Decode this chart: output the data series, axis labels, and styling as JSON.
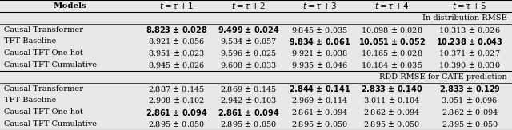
{
  "section1_label": "In distribution RMSE",
  "section2_label": "RDD RMSE for CATE prediction",
  "col_headers": [
    "$t = \\tau+1$",
    "$t = \\tau+2$",
    "$t = \\tau+3$",
    "$t = \\tau+4$",
    "$t = \\tau+5$"
  ],
  "rows_section1": [
    {
      "model": "Causal Transformer",
      "values": [
        "8.823",
        "9.499",
        "9.845",
        "10.098",
        "10.313"
      ],
      "errors": [
        "0.028",
        "0.024",
        "0.035",
        "0.028",
        "0.026"
      ],
      "bold_val": [
        true,
        true,
        false,
        false,
        false
      ],
      "bold_err": [
        true,
        true,
        false,
        false,
        false
      ]
    },
    {
      "model": "TFT Baseline",
      "values": [
        "8.921",
        "9.534",
        "9.834",
        "10.051",
        "10.238"
      ],
      "errors": [
        "0.056",
        "0.057",
        "0.061",
        "0.052",
        "0.043"
      ],
      "bold_val": [
        false,
        false,
        true,
        true,
        true
      ],
      "bold_err": [
        false,
        false,
        true,
        true,
        true
      ]
    },
    {
      "model": "Causal TFT One-hot",
      "values": [
        "8.951",
        "9.596",
        "9.921",
        "10.165",
        "10.371"
      ],
      "errors": [
        "0.023",
        "0.025",
        "0.038",
        "0.028",
        "0.027"
      ],
      "bold_val": [
        false,
        false,
        false,
        false,
        false
      ],
      "bold_err": [
        false,
        false,
        false,
        false,
        false
      ]
    },
    {
      "model": "Causal TFT Cumulative",
      "values": [
        "8.945",
        "9.608",
        "9.935",
        "10.184",
        "10.390"
      ],
      "errors": [
        "0.026",
        "0.033",
        "0.046",
        "0.035",
        "0.030"
      ],
      "bold_val": [
        false,
        false,
        false,
        false,
        false
      ],
      "bold_err": [
        false,
        false,
        false,
        false,
        false
      ]
    }
  ],
  "rows_section2": [
    {
      "model": "Causal Transformer",
      "values": [
        "2.887",
        "2.869",
        "2.844",
        "2.833",
        "2.833"
      ],
      "errors": [
        "0.145",
        "0.145",
        "0.141",
        "0.140",
        "0.129"
      ],
      "bold_val": [
        false,
        false,
        true,
        true,
        true
      ],
      "bold_err": [
        false,
        false,
        true,
        true,
        true
      ]
    },
    {
      "model": "TFT Baseline",
      "values": [
        "2.908",
        "2.942",
        "2.969",
        "3.011",
        "3.051"
      ],
      "errors": [
        "0.102",
        "0.103",
        "0.114",
        "0.104",
        "0.096"
      ],
      "bold_val": [
        false,
        false,
        false,
        false,
        false
      ],
      "bold_err": [
        false,
        false,
        false,
        false,
        false
      ]
    },
    {
      "model": "Causal TFT One-hot",
      "values": [
        "2.861",
        "2.861",
        "2.861",
        "2.862",
        "2.862"
      ],
      "errors": [
        "0.094",
        "0.094",
        "0.094",
        "0.094",
        "0.094"
      ],
      "bold_val": [
        true,
        true,
        false,
        false,
        false
      ],
      "bold_err": [
        true,
        true,
        false,
        false,
        false
      ]
    },
    {
      "model": "Causal TFT Cumulative",
      "values": [
        "2.895",
        "2.895",
        "2.895",
        "2.895",
        "2.895"
      ],
      "errors": [
        "0.050",
        "0.050",
        "0.050",
        "0.050",
        "0.050"
      ],
      "bold_val": [
        false,
        false,
        false,
        false,
        false
      ],
      "bold_err": [
        false,
        false,
        false,
        false,
        false
      ]
    }
  ],
  "fig_bg": "#e8e8e8",
  "font_size": 7.0,
  "header_font_size": 7.5
}
